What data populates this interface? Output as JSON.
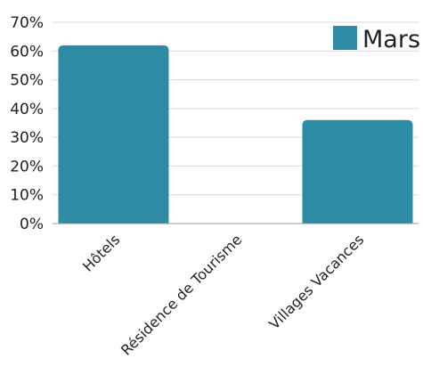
{
  "chart_data": {
    "type": "bar",
    "title": "",
    "xlabel": "",
    "ylabel": "",
    "categories": [
      "Hôtels",
      "Résidence de Tourisme",
      "Villages Vacances"
    ],
    "series": [
      {
        "name": "Mars",
        "values": [
          0.62,
          0.0,
          0.36
        ],
        "color": "#2e8ba6"
      }
    ],
    "ylim": [
      0,
      0.7
    ],
    "yticks": [
      {
        "value": 0.0,
        "label": "0%"
      },
      {
        "value": 0.1,
        "label": "10%"
      },
      {
        "value": 0.2,
        "label": "20%"
      },
      {
        "value": 0.3,
        "label": "30%"
      },
      {
        "value": 0.4,
        "label": "40%"
      },
      {
        "value": 0.5,
        "label": "50%"
      },
      {
        "value": 0.6,
        "label": "60%"
      },
      {
        "value": 0.7,
        "label": "70%"
      }
    ],
    "grid": true,
    "legend_position": "top-right"
  }
}
